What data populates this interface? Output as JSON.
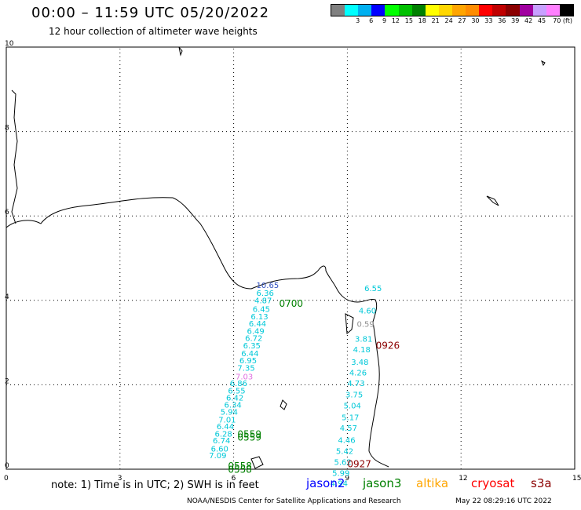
{
  "header": {
    "title": "00:00 – 11:59 UTC 05/20/2022",
    "subtitle": "12 hour collection of altimeter wave heights"
  },
  "legend": {
    "colors": [
      "#808080",
      "#00ffff",
      "#00b0f0",
      "#0000ff",
      "#00ff00",
      "#00c000",
      "#008000",
      "#ffff00",
      "#ffd700",
      "#ffa500",
      "#ff8c00",
      "#ff0000",
      "#c00000",
      "#8b0000",
      "#a000a0",
      "#c8a0ff",
      "#ff80ff",
      "#000000"
    ],
    "labels": [
      "3",
      "6",
      "9",
      "12",
      "15",
      "18",
      "21",
      "24",
      "27",
      "30",
      "33",
      "36",
      "39",
      "42",
      "45",
      "70 (ft)"
    ]
  },
  "axes": {
    "x_ticks": [
      "0",
      "3",
      "6",
      "9",
      "12",
      "15"
    ],
    "y_ticks": [
      "0",
      "2",
      "4",
      "6",
      "8",
      "10"
    ],
    "xlim": [
      0,
      15
    ],
    "ylim": [
      0,
      10
    ]
  },
  "tracks": [
    {
      "color": "#00c8d8",
      "points": [
        {
          "x": 6.6,
          "y": 4.29,
          "v": "10.65",
          "c": "#3050c0"
        },
        {
          "x": 6.6,
          "y": 4.11,
          "v": "6.36"
        },
        {
          "x": 6.55,
          "y": 3.93,
          "v": "4.87"
        },
        {
          "x": 6.5,
          "y": 3.73,
          "v": "6.45"
        },
        {
          "x": 6.45,
          "y": 3.55,
          "v": "6.13"
        },
        {
          "x": 6.4,
          "y": 3.38,
          "v": "6.44"
        },
        {
          "x": 6.35,
          "y": 3.21,
          "v": "6.49"
        },
        {
          "x": 6.3,
          "y": 3.04,
          "v": "6.72"
        },
        {
          "x": 6.25,
          "y": 2.86,
          "v": "6.35"
        },
        {
          "x": 6.2,
          "y": 2.68,
          "v": "6.44"
        },
        {
          "x": 6.15,
          "y": 2.51,
          "v": "6.95"
        },
        {
          "x": 6.1,
          "y": 2.33,
          "v": "7.35"
        },
        {
          "x": 6.05,
          "y": 2.13,
          "v": "7.03",
          "c": "#e070e0"
        },
        {
          "x": 5.9,
          "y": 1.97,
          "v": "6.86"
        },
        {
          "x": 5.85,
          "y": 1.79,
          "v": "6.55"
        },
        {
          "x": 5.8,
          "y": 1.63,
          "v": "6.42"
        },
        {
          "x": 5.75,
          "y": 1.46,
          "v": "6.34"
        },
        {
          "x": 5.65,
          "y": 1.29,
          "v": "5.94"
        },
        {
          "x": 5.6,
          "y": 1.11,
          "v": "7.01"
        },
        {
          "x": 5.55,
          "y": 0.95,
          "v": "6.44"
        },
        {
          "x": 5.5,
          "y": 0.77,
          "v": "6.28"
        },
        {
          "x": 5.45,
          "y": 0.61,
          "v": "6.74"
        },
        {
          "x": 5.4,
          "y": 0.42,
          "v": "6.60"
        },
        {
          "x": 5.35,
          "y": 0.26,
          "v": "7.09"
        }
      ]
    },
    {
      "color": "#00c8d8",
      "points": [
        {
          "x": 9.45,
          "y": 4.22,
          "v": "6.55"
        },
        {
          "x": 9.3,
          "y": 3.69,
          "v": "4.60"
        },
        {
          "x": 9.25,
          "y": 3.37,
          "v": "0.59",
          "c": "#909090"
        },
        {
          "x": 9.2,
          "y": 3.02,
          "v": "3.81"
        },
        {
          "x": 9.15,
          "y": 2.77,
          "v": "4.18"
        },
        {
          "x": 9.1,
          "y": 2.47,
          "v": "3.48"
        },
        {
          "x": 9.05,
          "y": 2.22,
          "v": "4.26"
        },
        {
          "x": 9.0,
          "y": 1.97,
          "v": "4.73"
        },
        {
          "x": 8.95,
          "y": 1.7,
          "v": "3.75"
        },
        {
          "x": 8.9,
          "y": 1.44,
          "v": "5.04"
        },
        {
          "x": 8.85,
          "y": 1.16,
          "v": "5.17"
        },
        {
          "x": 8.8,
          "y": 0.91,
          "v": "4.57"
        },
        {
          "x": 8.75,
          "y": 0.62,
          "v": "4.46"
        },
        {
          "x": 8.7,
          "y": 0.36,
          "v": "5.42"
        },
        {
          "x": 8.65,
          "y": 0.1,
          "v": "5.62"
        },
        {
          "x": 8.6,
          "y": -0.16,
          "v": "5.99"
        },
        {
          "x": 8.55,
          "y": -0.4,
          "v": "4.94"
        }
      ]
    }
  ],
  "time_labels": [
    {
      "x": 7.2,
      "y": 3.85,
      "t": "0700",
      "c": "#008000"
    },
    {
      "x": 9.75,
      "y": 2.85,
      "t": "0926",
      "c": "#8b0000"
    },
    {
      "x": 6.1,
      "y": 0.75,
      "t": "0559",
      "c": "#008000"
    },
    {
      "x": 6.1,
      "y": 0.68,
      "t": "0559",
      "c": "#008000"
    },
    {
      "x": 5.85,
      "y": 0.0,
      "t": "0558",
      "c": "#008000"
    },
    {
      "x": 5.85,
      "y": -0.08,
      "t": "0558",
      "c": "#008000"
    },
    {
      "x": 9.0,
      "y": 0.05,
      "t": "0927",
      "c": "#8b0000"
    }
  ],
  "note": "note:  1) Time is in UTC;  2) SWH is in feet",
  "satellites": [
    {
      "name": "jason2",
      "color": "#0000ff"
    },
    {
      "name": "jason3",
      "color": "#008000"
    },
    {
      "name": "altika",
      "color": "#ffa500"
    },
    {
      "name": "cryosat",
      "color": "#ff0000"
    },
    {
      "name": "s3a",
      "color": "#8b0000"
    }
  ],
  "footer": {
    "credit": "NOAA/NESDIS Center for Satellite Applications and Research",
    "timestamp": "May 22 08:29:16 UTC 2022"
  }
}
